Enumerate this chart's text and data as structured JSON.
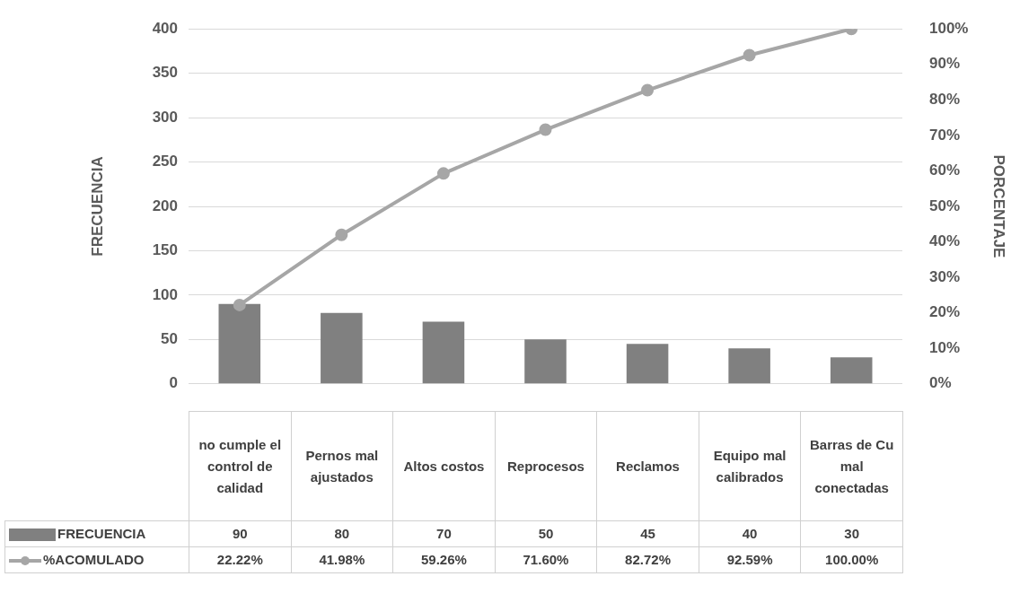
{
  "chart_data": {
    "type": "bar",
    "ylabel": "FRECUENCIA",
    "y2label": "PORCENTAJE",
    "categories": [
      "no cumple el control de calidad",
      "Pernos mal ajustados",
      "Altos costos",
      "Reprocesos",
      "Reclamos",
      "Equipo mal calibrados",
      "Barras de Cu mal conectadas"
    ],
    "series": [
      {
        "name": "FRECUENCIA",
        "color": "#808080",
        "values": [
          90,
          80,
          70,
          50,
          45,
          40,
          30
        ]
      },
      {
        "name": "%ACOMULADO",
        "type": "line",
        "axis": "y2",
        "color": "#a6a6a6",
        "values": [
          22.22,
          41.98,
          59.26,
          71.6,
          82.72,
          92.59,
          100
        ],
        "value_labels": [
          "22.22%",
          "41.98%",
          "59.26%",
          "71.60%",
          "82.72%",
          "92.59%",
          "100.00%"
        ]
      }
    ],
    "ylim": [
      0,
      400
    ],
    "yticks": [
      0,
      50,
      100,
      150,
      200,
      250,
      300,
      350,
      400
    ],
    "y2lim": [
      0,
      100
    ],
    "y2ticks": [
      {
        "value": 0,
        "label": "0%"
      },
      {
        "value": 10,
        "label": "10%"
      },
      {
        "value": 20,
        "label": "20%"
      },
      {
        "value": 30,
        "label": "30%"
      },
      {
        "value": 40,
        "label": "40%"
      },
      {
        "value": 50,
        "label": "50%"
      },
      {
        "value": 60,
        "label": "60%"
      },
      {
        "value": 70,
        "label": "70%"
      },
      {
        "value": 80,
        "label": "80%"
      },
      {
        "value": 90,
        "label": "90%"
      },
      {
        "value": 100,
        "label": "100%"
      }
    ],
    "grid": "y",
    "legend": "bottom",
    "data_labels": true,
    "marker": "circle",
    "line_style": "solid"
  }
}
